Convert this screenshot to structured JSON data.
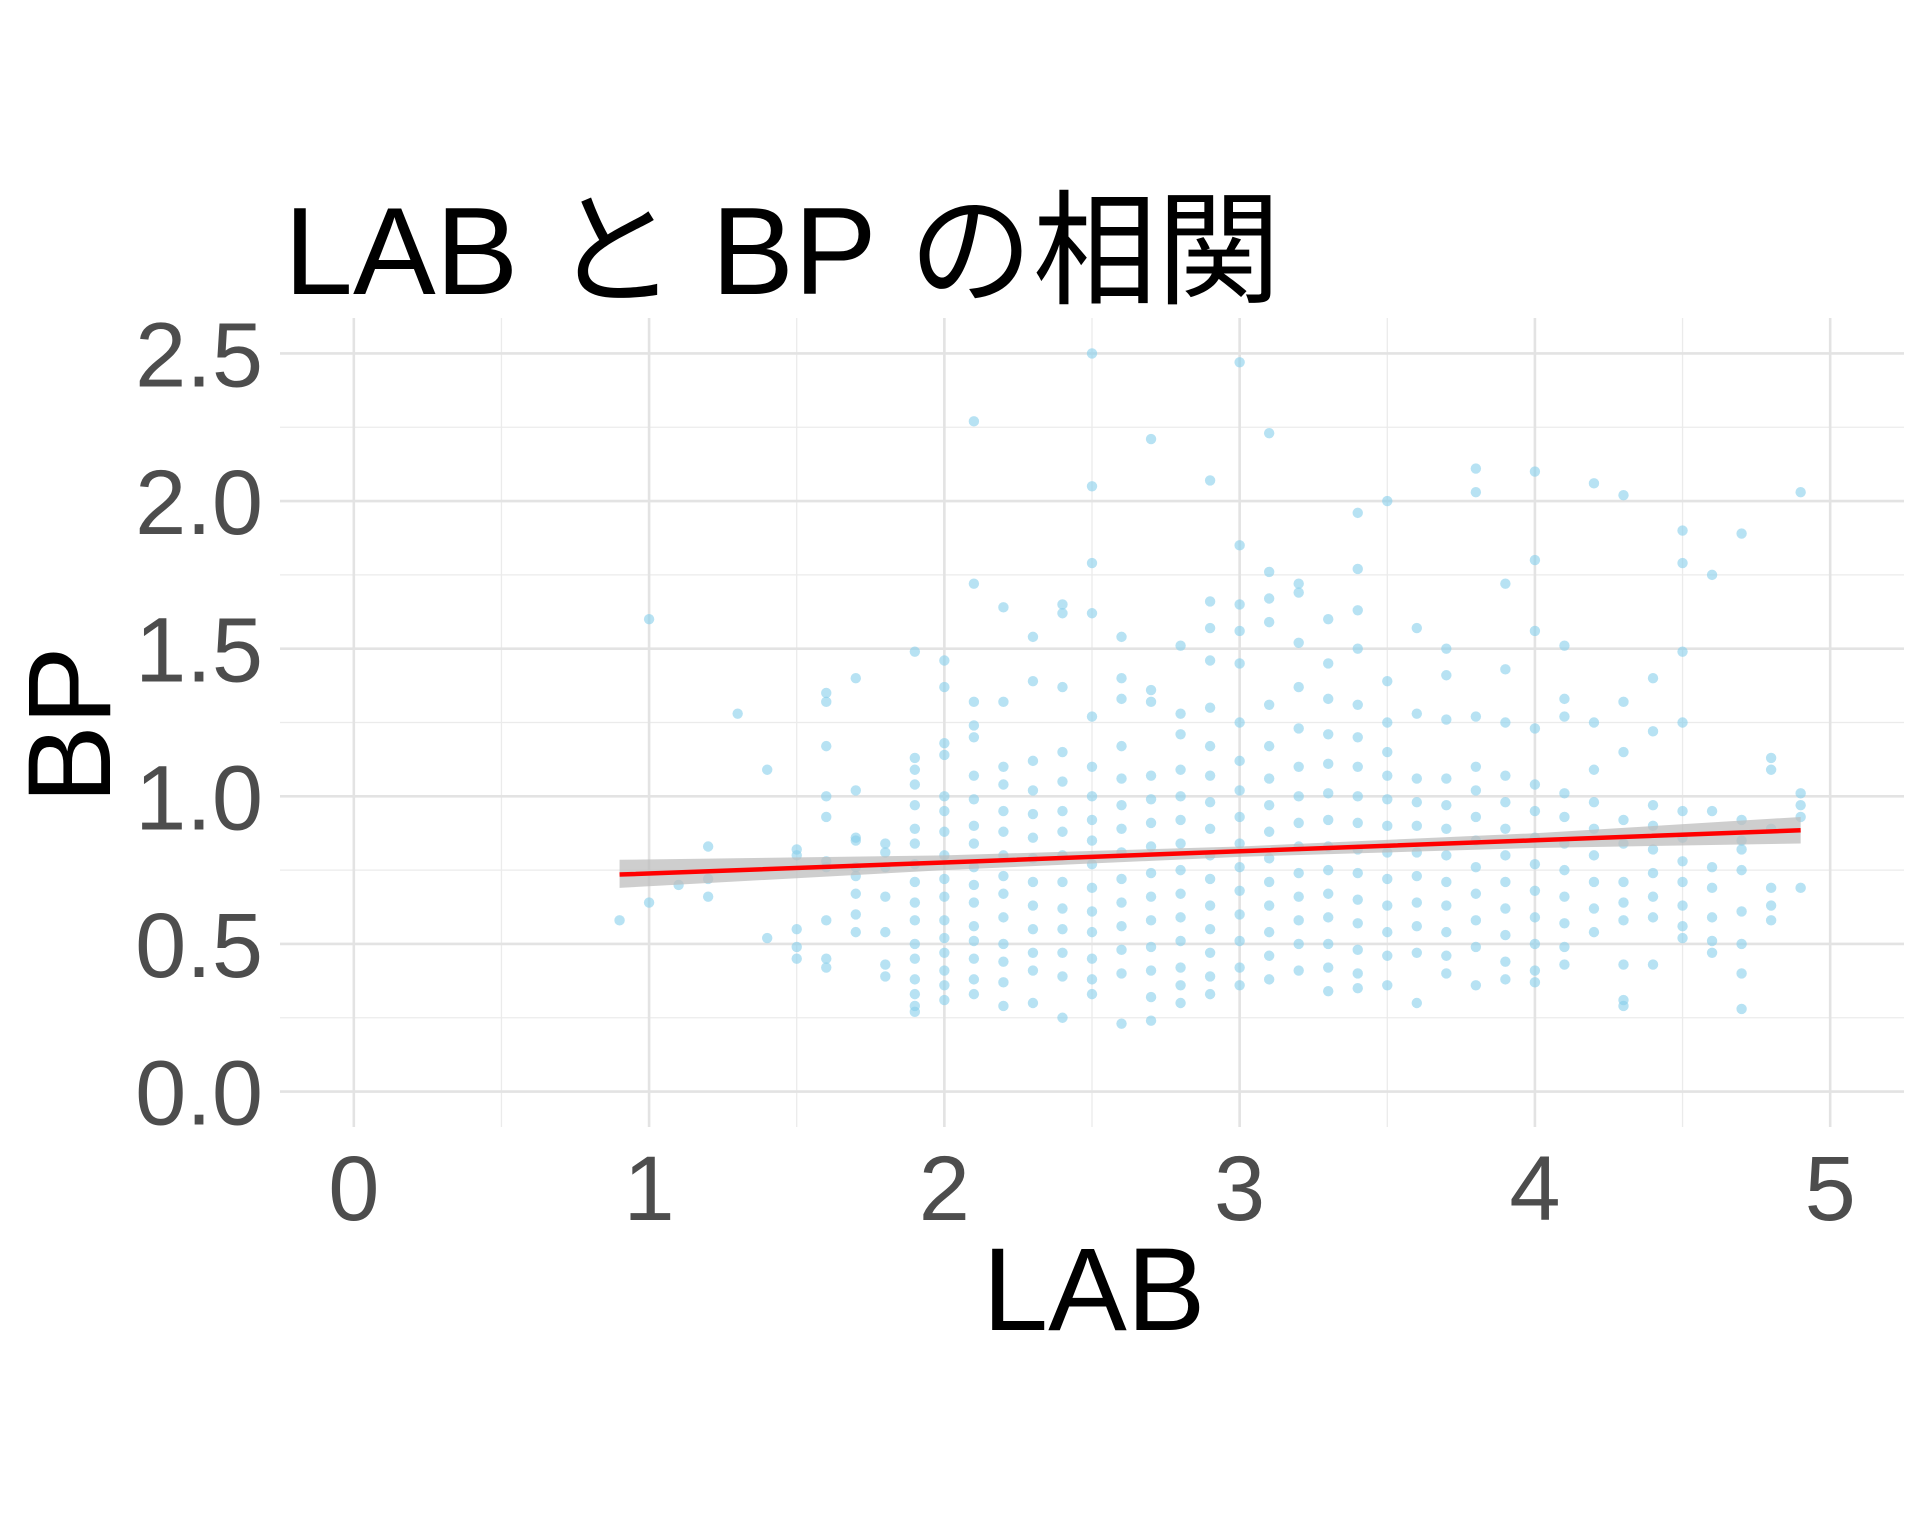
{
  "chart_data": {
    "type": "scatter",
    "title": "LAB と BP の相関",
    "x_label": "LAB",
    "y_label": "BP",
    "xlim": [
      -0.25,
      5.25
    ],
    "ylim": [
      -0.12,
      2.62
    ],
    "xticks": [
      0,
      1,
      2,
      3,
      4,
      5
    ],
    "yticks": [
      {
        "value": 0,
        "label": "0.0"
      },
      0.5,
      {
        "value": 1,
        "label": "1.0"
      },
      1.5,
      {
        "value": 2,
        "label": "2.0"
      },
      2.5
    ],
    "xminor": [
      0.5,
      1.5,
      2.5,
      3.5,
      4.5
    ],
    "yminor": [
      0.25,
      0.75,
      1.25,
      1.75,
      2.25
    ],
    "grid": true,
    "scatter": {
      "color": "#87CEEB",
      "x": [
        0.9,
        1.0,
        1.0,
        1.1,
        1.2,
        1.2,
        1.2,
        1.3,
        1.4,
        1.4,
        1.5,
        1.5,
        1.5,
        1.5,
        1.5,
        1.6,
        1.6,
        1.6,
        1.6,
        1.6,
        1.6,
        1.6,
        1.6,
        1.6,
        1.6,
        1.7,
        1.7,
        1.7,
        1.7,
        1.7,
        1.7,
        1.7,
        1.7,
        1.7,
        1.8,
        1.8,
        1.8,
        1.8,
        1.8,
        1.8,
        1.8,
        1.9,
        1.9,
        1.9,
        1.9,
        1.9,
        1.9,
        1.9,
        1.9,
        1.9,
        1.9,
        1.9,
        1.9,
        1.9,
        1.9,
        1.9,
        1.9,
        1.9,
        2.0,
        2.0,
        2.0,
        2.0,
        2.0,
        2.0,
        2.0,
        2.0,
        2.0,
        2.0,
        2.0,
        2.0,
        2.0,
        2.0,
        2.0,
        2.0,
        2.1,
        2.1,
        2.1,
        2.1,
        2.1,
        2.1,
        2.1,
        2.1,
        2.1,
        2.1,
        2.1,
        2.1,
        2.1,
        2.1,
        2.1,
        2.1,
        2.1,
        2.2,
        2.2,
        2.2,
        2.2,
        2.2,
        2.2,
        2.2,
        2.2,
        2.2,
        2.2,
        2.2,
        2.2,
        2.2,
        2.2,
        2.3,
        2.3,
        2.3,
        2.3,
        2.3,
        2.3,
        2.3,
        2.3,
        2.3,
        2.3,
        2.3,
        2.3,
        2.3,
        2.4,
        2.4,
        2.4,
        2.4,
        2.4,
        2.4,
        2.4,
        2.4,
        2.4,
        2.4,
        2.4,
        2.4,
        2.4,
        2.4,
        2.5,
        2.5,
        2.5,
        2.5,
        2.5,
        2.5,
        2.5,
        2.5,
        2.5,
        2.5,
        2.5,
        2.5,
        2.5,
        2.5,
        2.5,
        2.5,
        2.6,
        2.6,
        2.6,
        2.6,
        2.6,
        2.6,
        2.6,
        2.6,
        2.6,
        2.6,
        2.6,
        2.6,
        2.6,
        2.6,
        2.7,
        2.7,
        2.7,
        2.7,
        2.7,
        2.7,
        2.7,
        2.7,
        2.7,
        2.7,
        2.7,
        2.7,
        2.7,
        2.7,
        2.8,
        2.8,
        2.8,
        2.8,
        2.8,
        2.8,
        2.8,
        2.8,
        2.8,
        2.8,
        2.8,
        2.8,
        2.8,
        2.8,
        2.9,
        2.9,
        2.9,
        2.9,
        2.9,
        2.9,
        2.9,
        2.9,
        2.9,
        2.9,
        2.9,
        2.9,
        2.9,
        2.9,
        2.9,
        2.9,
        3.0,
        3.0,
        3.0,
        3.0,
        3.0,
        3.0,
        3.0,
        3.0,
        3.0,
        3.0,
        3.0,
        3.0,
        3.0,
        3.0,
        3.0,
        3.0,
        3.1,
        3.1,
        3.1,
        3.1,
        3.1,
        3.1,
        3.1,
        3.1,
        3.1,
        3.1,
        3.1,
        3.1,
        3.1,
        3.1,
        3.1,
        3.2,
        3.2,
        3.2,
        3.2,
        3.2,
        3.2,
        3.2,
        3.2,
        3.2,
        3.2,
        3.2,
        3.2,
        3.2,
        3.2,
        3.3,
        3.3,
        3.3,
        3.3,
        3.3,
        3.3,
        3.3,
        3.3,
        3.3,
        3.3,
        3.3,
        3.3,
        3.3,
        3.3,
        3.4,
        3.4,
        3.4,
        3.4,
        3.4,
        3.4,
        3.4,
        3.4,
        3.4,
        3.4,
        3.4,
        3.4,
        3.4,
        3.4,
        3.4,
        3.4,
        3.5,
        3.5,
        3.5,
        3.5,
        3.5,
        3.5,
        3.5,
        3.5,
        3.5,
        3.5,
        3.5,
        3.5,
        3.5,
        3.6,
        3.6,
        3.6,
        3.6,
        3.6,
        3.6,
        3.6,
        3.6,
        3.6,
        3.6,
        3.6,
        3.7,
        3.7,
        3.7,
        3.7,
        3.7,
        3.7,
        3.7,
        3.7,
        3.7,
        3.7,
        3.7,
        3.7,
        3.8,
        3.8,
        3.8,
        3.8,
        3.8,
        3.8,
        3.8,
        3.8,
        3.8,
        3.8,
        3.8,
        3.8,
        3.9,
        3.9,
        3.9,
        3.9,
        3.9,
        3.9,
        3.9,
        3.9,
        3.9,
        3.9,
        3.9,
        3.9,
        4.0,
        4.0,
        4.0,
        4.0,
        4.0,
        4.0,
        4.0,
        4.0,
        4.0,
        4.0,
        4.0,
        4.0,
        4.0,
        4.1,
        4.1,
        4.1,
        4.1,
        4.1,
        4.1,
        4.1,
        4.1,
        4.1,
        4.1,
        4.1,
        4.2,
        4.2,
        4.2,
        4.2,
        4.2,
        4.2,
        4.2,
        4.2,
        4.2,
        4.3,
        4.3,
        4.3,
        4.3,
        4.3,
        4.3,
        4.3,
        4.3,
        4.3,
        4.3,
        4.3,
        4.4,
        4.4,
        4.4,
        4.4,
        4.4,
        4.4,
        4.4,
        4.4,
        4.4,
        4.5,
        4.5,
        4.5,
        4.5,
        4.5,
        4.5,
        4.5,
        4.5,
        4.5,
        4.5,
        4.5,
        4.6,
        4.6,
        4.6,
        4.6,
        4.6,
        4.6,
        4.6,
        4.7,
        4.7,
        4.7,
        4.7,
        4.7,
        4.7,
        4.7,
        4.7,
        4.7,
        4.8,
        4.8,
        4.8,
        4.8,
        4.8,
        4.8,
        4.9,
        4.9,
        4.9,
        4.9,
        4.9
      ],
      "y": [
        0.58,
        1.6,
        0.64,
        0.7,
        0.83,
        0.72,
        0.66,
        1.28,
        1.09,
        0.52,
        0.82,
        0.8,
        0.55,
        0.49,
        0.45,
        1.35,
        1.32,
        1.17,
        1.0,
        0.93,
        0.78,
        0.76,
        0.58,
        0.45,
        0.42,
        1.4,
        1.02,
        0.86,
        0.85,
        0.76,
        0.73,
        0.67,
        0.6,
        0.54,
        0.84,
        0.81,
        0.76,
        0.66,
        0.54,
        0.43,
        0.39,
        1.49,
        1.13,
        1.09,
        1.04,
        0.97,
        0.89,
        0.84,
        0.77,
        0.71,
        0.64,
        0.58,
        0.5,
        0.45,
        0.38,
        0.33,
        0.29,
        0.27,
        1.46,
        1.37,
        1.18,
        1.14,
        1.0,
        0.95,
        0.88,
        0.8,
        0.72,
        0.66,
        0.58,
        0.52,
        0.47,
        0.41,
        0.36,
        0.31,
        2.27,
        1.72,
        1.32,
        1.24,
        1.2,
        1.07,
        0.99,
        0.9,
        0.84,
        0.76,
        0.7,
        0.64,
        0.56,
        0.51,
        0.45,
        0.38,
        0.33,
        1.64,
        1.32,
        1.1,
        1.04,
        0.95,
        0.88,
        0.8,
        0.73,
        0.67,
        0.59,
        0.5,
        0.44,
        0.37,
        0.29,
        1.54,
        1.39,
        1.12,
        1.02,
        0.94,
        0.86,
        0.79,
        0.71,
        0.63,
        0.55,
        0.47,
        0.41,
        0.3,
        1.65,
        1.62,
        1.37,
        1.15,
        1.05,
        0.95,
        0.88,
        0.8,
        0.71,
        0.62,
        0.55,
        0.47,
        0.39,
        0.25,
        2.5,
        2.05,
        1.79,
        1.62,
        1.27,
        1.1,
        1.0,
        0.92,
        0.85,
        0.77,
        0.69,
        0.61,
        0.54,
        0.45,
        0.38,
        0.33,
        1.54,
        1.4,
        1.33,
        1.17,
        1.06,
        0.97,
        0.89,
        0.81,
        0.72,
        0.64,
        0.56,
        0.48,
        0.4,
        0.23,
        2.21,
        1.36,
        1.32,
        1.07,
        0.99,
        0.91,
        0.83,
        0.74,
        0.66,
        0.58,
        0.49,
        0.41,
        0.32,
        0.24,
        1.51,
        1.28,
        1.21,
        1.09,
        1.0,
        0.92,
        0.84,
        0.75,
        0.67,
        0.59,
        0.51,
        0.42,
        0.36,
        0.3,
        2.07,
        1.66,
        1.57,
        1.46,
        1.3,
        1.17,
        1.07,
        0.98,
        0.89,
        0.8,
        0.72,
        0.63,
        0.55,
        0.47,
        0.39,
        0.33,
        2.47,
        1.85,
        1.65,
        1.56,
        1.45,
        1.25,
        1.12,
        1.02,
        0.93,
        0.84,
        0.76,
        0.68,
        0.6,
        0.51,
        0.42,
        0.36,
        2.23,
        1.76,
        1.67,
        1.59,
        1.31,
        1.17,
        1.06,
        0.97,
        0.88,
        0.79,
        0.71,
        0.63,
        0.54,
        0.46,
        0.38,
        1.72,
        1.69,
        1.52,
        1.37,
        1.23,
        1.1,
        1.0,
        0.91,
        0.83,
        0.74,
        0.66,
        0.58,
        0.5,
        0.41,
        1.6,
        1.45,
        1.33,
        1.21,
        1.11,
        1.01,
        0.92,
        0.83,
        0.75,
        0.67,
        0.59,
        0.5,
        0.42,
        0.34,
        1.96,
        1.77,
        1.63,
        1.5,
        1.31,
        1.2,
        1.1,
        1.0,
        0.91,
        0.82,
        0.74,
        0.65,
        0.57,
        0.48,
        0.4,
        0.35,
        2.0,
        1.39,
        1.25,
        1.15,
        1.07,
        0.99,
        0.9,
        0.81,
        0.72,
        0.63,
        0.54,
        0.46,
        0.36,
        1.57,
        1.28,
        1.06,
        0.98,
        0.9,
        0.81,
        0.73,
        0.64,
        0.56,
        0.47,
        0.3,
        1.5,
        1.41,
        1.26,
        1.06,
        0.97,
        0.89,
        0.8,
        0.71,
        0.63,
        0.54,
        0.46,
        0.4,
        2.11,
        2.03,
        1.27,
        1.1,
        1.02,
        0.93,
        0.85,
        0.76,
        0.67,
        0.58,
        0.49,
        0.36,
        1.72,
        1.43,
        1.25,
        1.07,
        0.98,
        0.89,
        0.8,
        0.71,
        0.62,
        0.53,
        0.44,
        0.38,
        2.1,
        1.8,
        1.56,
        1.23,
        1.04,
        0.95,
        0.86,
        0.77,
        0.68,
        0.59,
        0.5,
        0.41,
        0.37,
        1.51,
        1.33,
        1.27,
        1.01,
        0.93,
        0.84,
        0.75,
        0.66,
        0.57,
        0.49,
        0.43,
        2.06,
        1.25,
        1.09,
        0.98,
        0.89,
        0.8,
        0.71,
        0.62,
        0.54,
        2.02,
        1.32,
        1.15,
        0.92,
        0.84,
        0.71,
        0.64,
        0.58,
        0.43,
        0.31,
        0.29,
        1.4,
        1.22,
        0.97,
        0.9,
        0.82,
        0.74,
        0.66,
        0.59,
        0.43,
        1.9,
        1.79,
        1.49,
        1.25,
        0.95,
        0.86,
        0.78,
        0.71,
        0.63,
        0.56,
        0.52,
        1.75,
        0.95,
        0.76,
        0.69,
        0.59,
        0.51,
        0.47,
        1.89,
        0.92,
        0.85,
        0.82,
        0.75,
        0.61,
        0.5,
        0.4,
        0.28,
        1.13,
        1.09,
        0.89,
        0.69,
        0.63,
        0.58,
        2.03,
        1.01,
        0.97,
        0.93,
        0.69
      ]
    },
    "band": {
      "color": "#bebebe",
      "x": [
        0.9,
        2.0,
        3.0,
        4.0,
        4.9
      ],
      "lower": [
        0.69,
        0.75,
        0.795,
        0.825,
        0.84
      ],
      "upper": [
        0.785,
        0.8,
        0.83,
        0.875,
        0.93
      ]
    },
    "fit": {
      "color": "#ff0000",
      "x": [
        0.9,
        2.0,
        3.0,
        4.0,
        4.9
      ],
      "y": [
        0.735,
        0.776,
        0.814,
        0.851,
        0.885
      ]
    }
  }
}
